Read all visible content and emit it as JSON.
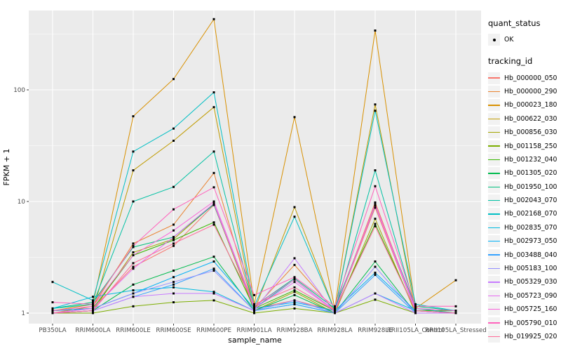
{
  "chart_data": {
    "type": "line",
    "title": "",
    "xlabel": "sample_name",
    "ylabel": "FPKM + 1",
    "y_scale": "log10",
    "grid": true,
    "panel_bg": "#EBEBEB",
    "grid_color": "#FFFFFF",
    "point_color": "#000000",
    "y_ticks": [
      {
        "value": 1,
        "label": "1"
      },
      {
        "value": 10,
        "label": "10"
      },
      {
        "value": 100,
        "label": "100"
      }
    ],
    "y_minor_ticks": [
      3.1623,
      31.623,
      316.23
    ],
    "ylim": [
      0.93,
      515
    ],
    "categories": [
      "PB350LA",
      "RRIM600LA",
      "RRIM600LE",
      "RRIM600SE",
      "RRIM600PE",
      "RRIM901LA",
      "RRIM928BA",
      "RRIM928LA",
      "RRIM928LE",
      "RRII105LA_Control",
      "RRII105LA_Stressed"
    ],
    "legend": {
      "position": "right",
      "quant_status_title": "quant_status",
      "quant_status_items": [
        {
          "label": "OK",
          "marker": "black-point"
        }
      ],
      "tracking_id_title": "tracking_id"
    },
    "series": [
      {
        "name": "Hb_000000_050",
        "color": "#F8766D",
        "values": [
          1.05,
          1.1,
          2.6,
          4.0,
          9.3,
          1.1,
          1.3,
          1.05,
          8.8,
          1.05,
          1.0
        ]
      },
      {
        "name": "Hb_000000_290",
        "color": "#EA8331",
        "values": [
          1.0,
          1.15,
          4.2,
          6.2,
          18.0,
          1.1,
          2.7,
          1.05,
          9.8,
          1.1,
          1.0
        ]
      },
      {
        "name": "Hb_000023_180",
        "color": "#D89000",
        "values": [
          1.05,
          1.2,
          58.0,
          125.0,
          430.0,
          1.2,
          57.0,
          1.1,
          340.0,
          1.1,
          1.97
        ]
      },
      {
        "name": "Hb_000622_030",
        "color": "#C09B00",
        "values": [
          1.0,
          1.05,
          19.0,
          35.0,
          70.0,
          1.05,
          8.9,
          1.05,
          74.0,
          1.05,
          1.0
        ]
      },
      {
        "name": "Hb_000856_030",
        "color": "#A3A500",
        "values": [
          1.0,
          1.05,
          3.5,
          4.6,
          9.5,
          1.05,
          1.55,
          1.0,
          7.0,
          1.0,
          1.0
        ]
      },
      {
        "name": "Hb_001158_250",
        "color": "#7CAE00",
        "values": [
          1.0,
          1.0,
          1.15,
          1.25,
          1.3,
          1.0,
          1.1,
          1.0,
          1.32,
          1.0,
          1.0
        ]
      },
      {
        "name": "Hb_001232_040",
        "color": "#39B600",
        "values": [
          1.05,
          1.1,
          3.3,
          4.5,
          6.5,
          1.1,
          1.6,
          1.05,
          6.3,
          1.05,
          1.05
        ]
      },
      {
        "name": "Hb_001305_020",
        "color": "#00BB4E",
        "values": [
          1.0,
          1.05,
          1.8,
          2.4,
          3.2,
          1.05,
          1.45,
          1.0,
          2.9,
          1.0,
          1.0
        ]
      },
      {
        "name": "Hb_001950_100",
        "color": "#00BF7D",
        "values": [
          1.1,
          1.25,
          3.9,
          4.8,
          9.4,
          1.15,
          2.05,
          1.1,
          9.2,
          1.15,
          1.05
        ]
      },
      {
        "name": "Hb_002043_070",
        "color": "#00C1A3",
        "values": [
          1.1,
          1.2,
          10.0,
          13.5,
          28.0,
          1.1,
          2.0,
          1.05,
          19.0,
          1.1,
          1.0
        ]
      },
      {
        "name": "Hb_002168_070",
        "color": "#00BFC4",
        "values": [
          1.9,
          1.3,
          28.0,
          45.0,
          95.0,
          1.15,
          7.3,
          1.05,
          65.0,
          1.2,
          1.05
        ]
      },
      {
        "name": "Hb_002835_070",
        "color": "#00BAE0",
        "values": [
          1.1,
          1.4,
          1.6,
          1.7,
          1.55,
          1.05,
          1.2,
          1.0,
          1.5,
          1.05,
          1.0
        ]
      },
      {
        "name": "Hb_002973_050",
        "color": "#00B0F6",
        "values": [
          1.05,
          1.1,
          1.5,
          2.1,
          2.9,
          1.1,
          1.25,
          1.05,
          2.3,
          1.05,
          1.0
        ]
      },
      {
        "name": "Hb_003488_040",
        "color": "#35A2FF",
        "values": [
          1.0,
          1.05,
          1.4,
          1.8,
          2.5,
          1.05,
          1.2,
          1.0,
          2.2,
          1.0,
          1.0
        ]
      },
      {
        "name": "Hb_005183_100",
        "color": "#9590FF",
        "values": [
          1.0,
          1.1,
          1.5,
          1.9,
          2.4,
          1.05,
          1.3,
          1.0,
          2.6,
          1.0,
          1.0
        ]
      },
      {
        "name": "Hb_005329_030",
        "color": "#C77CFF",
        "values": [
          1.0,
          1.05,
          1.4,
          1.5,
          1.5,
          1.05,
          3.1,
          1.0,
          1.5,
          1.0,
          1.0
        ]
      },
      {
        "name": "Hb_005723_090",
        "color": "#E76BF3",
        "values": [
          1.0,
          1.1,
          2.5,
          4.8,
          9.6,
          1.1,
          1.9,
          1.05,
          9.3,
          1.05,
          1.0
        ]
      },
      {
        "name": "Hb_005725_160",
        "color": "#FA62DB",
        "values": [
          1.05,
          1.15,
          3.3,
          5.5,
          10.0,
          1.15,
          2.0,
          1.05,
          9.5,
          1.1,
          1.05
        ]
      },
      {
        "name": "Hb_005790_010",
        "color": "#FF62BC",
        "values": [
          1.25,
          1.2,
          4.0,
          8.5,
          13.4,
          1.45,
          2.1,
          1.15,
          13.7,
          1.15,
          1.15
        ]
      },
      {
        "name": "Hb_019925_020",
        "color": "#FF6A98",
        "values": [
          1.0,
          1.05,
          2.8,
          4.2,
          6.2,
          1.2,
          1.7,
          1.05,
          6.0,
          1.05,
          1.0
        ]
      }
    ]
  }
}
